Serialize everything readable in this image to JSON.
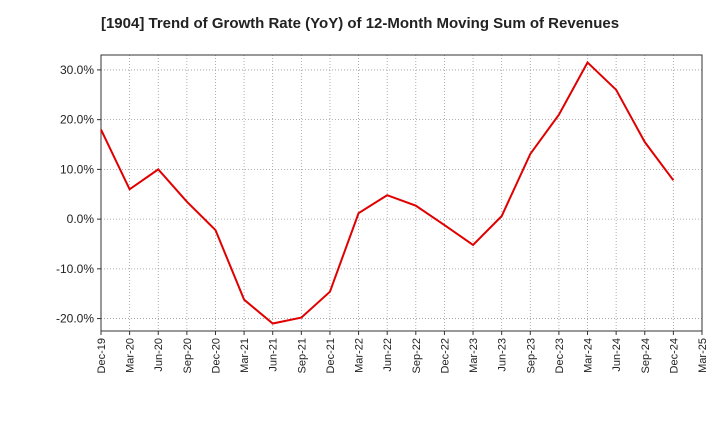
{
  "chart_data": {
    "type": "line",
    "title": "[1904]  Trend of Growth Rate (YoY) of 12-Month Moving Sum of Revenues",
    "xlabel": "",
    "ylabel": "",
    "x": [
      "Dec-19",
      "Mar-20",
      "Jun-20",
      "Sep-20",
      "Dec-20",
      "Mar-21",
      "Jun-21",
      "Sep-21",
      "Dec-21",
      "Mar-22",
      "Jun-22",
      "Sep-22",
      "Dec-22",
      "Mar-23",
      "Jun-23",
      "Sep-23",
      "Dec-23",
      "Mar-24",
      "Jun-24",
      "Sep-24",
      "Dec-24",
      "Mar-25"
    ],
    "series": [
      {
        "values": [
          18.0,
          6.0,
          10.0,
          3.5,
          -2.2,
          -16.2,
          -21.0,
          -19.8,
          -14.6,
          1.2,
          4.8,
          2.7,
          -1.2,
          -5.2,
          0.6,
          13.1,
          21.0,
          31.5,
          26.0,
          15.5,
          7.8,
          null
        ]
      }
    ],
    "yticks": [
      -20,
      -10,
      0,
      10,
      20,
      30
    ],
    "ytick_labels": [
      "-20.0%",
      "-10.0%",
      "0.0%",
      "10.0%",
      "20.0%",
      "30.0%"
    ],
    "ylim": [
      -22.5,
      33.0
    ],
    "grid": true,
    "line_color": "#e00000",
    "axis_color": "#333333",
    "grid_color": "#999999",
    "legend": "none"
  }
}
